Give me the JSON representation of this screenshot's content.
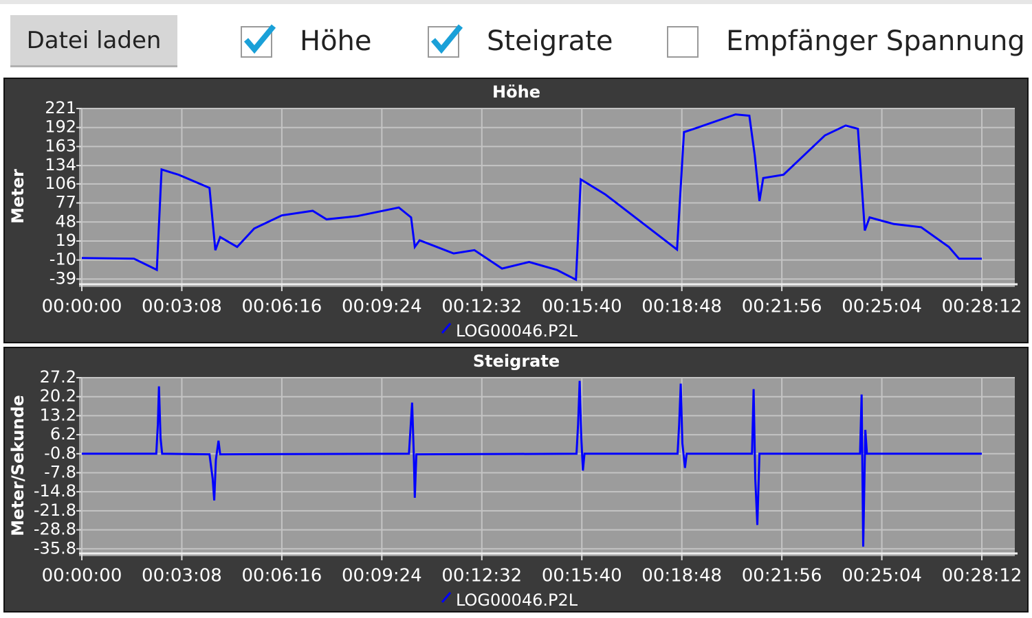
{
  "toolbar": {
    "button": "Datei laden",
    "checkboxes": [
      {
        "label": "Höhe",
        "checked": true
      },
      {
        "label": "Steigrate",
        "checked": true
      },
      {
        "label": "Empfänger Spannung",
        "checked": false
      }
    ]
  },
  "chart_data": [
    {
      "type": "line",
      "title": "Höhe",
      "y_label": "Meter",
      "x": [
        0,
        98,
        141,
        150,
        182,
        240,
        251,
        260,
        292,
        324,
        376,
        434,
        460,
        518,
        596,
        619,
        626,
        635,
        699,
        738,
        790,
        841,
        893,
        929,
        938,
        984,
        1119,
        1132,
        1151,
        1229,
        1255,
        1265,
        1274,
        1281,
        1319,
        1397,
        1436,
        1459,
        1472,
        1481,
        1526,
        1578,
        1630,
        1649,
        1692
      ],
      "series": [
        {
          "name": "LOG00046.P2L",
          "color": "#0000ff",
          "values": [
            -7,
            -8,
            -25,
            128,
            120,
            100,
            5,
            25,
            10,
            38,
            58,
            65,
            52,
            57,
            70,
            55,
            10,
            20,
            0,
            5,
            -23,
            -13,
            -25,
            -40,
            113,
            90,
            6,
            185,
            190,
            212,
            210,
            150,
            80,
            115,
            120,
            180,
            195,
            190,
            35,
            55,
            45,
            40,
            10,
            -8,
            -8
          ]
        }
      ],
      "xlim": [
        0,
        1754
      ],
      "ylim": [
        -47,
        221
      ],
      "xticks": [
        {
          "value": 0,
          "label": "00:00:00"
        },
        {
          "value": 188,
          "label": "00:03:08"
        },
        {
          "value": 376,
          "label": "00:06:16"
        },
        {
          "value": 564,
          "label": "00:09:24"
        },
        {
          "value": 752,
          "label": "00:12:32"
        },
        {
          "value": 940,
          "label": "00:15:40"
        },
        {
          "value": 1128,
          "label": "00:18:48"
        },
        {
          "value": 1316,
          "label": "00:21:56"
        },
        {
          "value": 1504,
          "label": "00:25:04"
        },
        {
          "value": 1692,
          "label": "00:28:12"
        }
      ],
      "yticks": [
        221,
        192,
        163,
        134,
        106,
        77,
        48,
        19,
        -10,
        -39
      ],
      "grid": true
    },
    {
      "type": "line",
      "title": "Steigrate",
      "y_label": "Meter/Sekunde",
      "x": [
        0,
        140,
        143,
        145,
        148,
        151,
        240,
        246,
        249,
        252,
        257,
        260,
        615,
        621,
        624,
        626,
        629,
        930,
        933,
        936,
        939,
        942,
        945,
        1120,
        1123,
        1126,
        1129,
        1134,
        1137,
        1260,
        1263,
        1266,
        1270,
        1274,
        1463,
        1466,
        1469,
        1473,
        1476,
        1692
      ],
      "series": [
        {
          "name": "LOG00046.P2L",
          "color": "#0000ff",
          "values": [
            -0.8,
            -0.8,
            10,
            24,
            5,
            -0.8,
            -1,
            -10,
            -18,
            -3,
            4,
            -1,
            -0.8,
            18,
            -0.8,
            -17,
            -1,
            -0.8,
            10,
            26,
            5,
            -7,
            -0.8,
            -0.8,
            10,
            25,
            3,
            -6,
            -0.8,
            -0.8,
            23,
            -10,
            -27,
            -0.8,
            -0.8,
            21,
            -35,
            8,
            -0.8,
            -0.8
          ]
        }
      ],
      "xlim": [
        0,
        1754
      ],
      "ylim": [
        -37.5,
        27.2
      ],
      "xticks": [
        {
          "value": 0,
          "label": "00:00:00"
        },
        {
          "value": 188,
          "label": "00:03:08"
        },
        {
          "value": 376,
          "label": "00:06:16"
        },
        {
          "value": 564,
          "label": "00:09:24"
        },
        {
          "value": 752,
          "label": "00:12:32"
        },
        {
          "value": 940,
          "label": "00:15:40"
        },
        {
          "value": 1128,
          "label": "00:18:48"
        },
        {
          "value": 1316,
          "label": "00:21:56"
        },
        {
          "value": 1504,
          "label": "00:25:04"
        },
        {
          "value": 1692,
          "label": "00:28:12"
        }
      ],
      "yticks": [
        27.2,
        20.2,
        13.2,
        6.2,
        -0.8,
        -7.8,
        -14.8,
        -21.8,
        -28.8,
        -35.8
      ],
      "grid": true
    }
  ]
}
